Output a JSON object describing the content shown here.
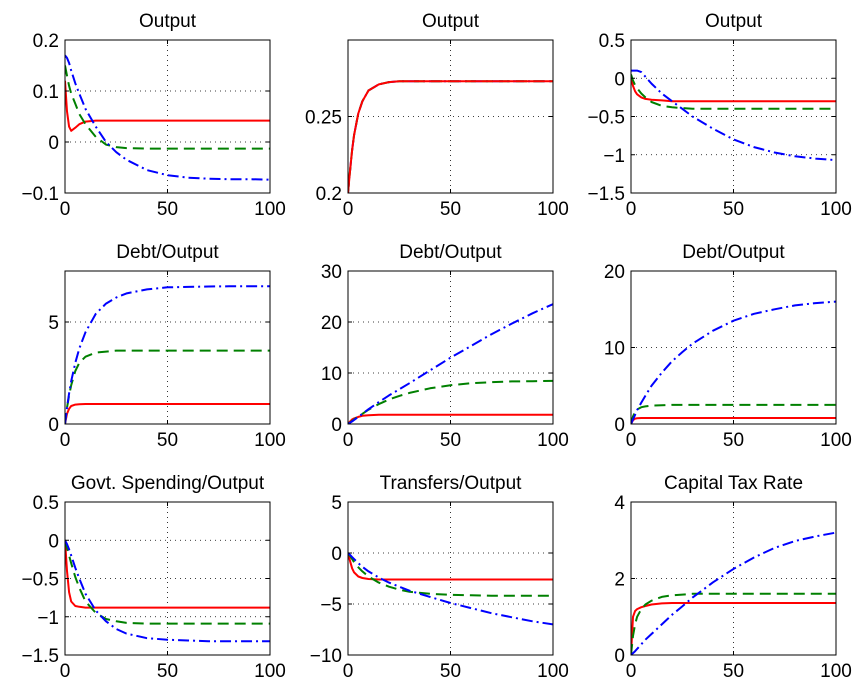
{
  "figure": {
    "colors": {
      "solid": "#ff0000",
      "dashed": "#008000",
      "dashdot": "#0000ff"
    },
    "line_styles": [
      "solid",
      "dashed",
      "dashdot"
    ]
  },
  "chart_data": [
    {
      "type": "line",
      "title": "Output",
      "xlim": [
        0,
        100
      ],
      "ylim": [
        -0.1,
        0.2
      ],
      "xticks": [
        0,
        50,
        100
      ],
      "yticks": [
        -0.1,
        0,
        0.1,
        0.2
      ],
      "xtick_labels": [
        "0",
        "50",
        "100"
      ],
      "ytick_labels": [
        "−0.1",
        "0",
        "0.1",
        "0.2"
      ],
      "grid": "dotted",
      "x": [
        0,
        1,
        2,
        3,
        5,
        7,
        10,
        15,
        20,
        25,
        30,
        40,
        50,
        60,
        70,
        80,
        90,
        100
      ],
      "series": [
        {
          "style": "solid",
          "color": "#ff0000",
          "values": [
            0.12,
            0.06,
            0.03,
            0.022,
            0.028,
            0.035,
            0.04,
            0.042,
            0.042,
            0.042,
            0.042,
            0.042,
            0.042,
            0.042,
            0.042,
            0.042,
            0.042,
            0.042
          ]
        },
        {
          "style": "dashed",
          "color": "#008000",
          "values": [
            0.15,
            0.13,
            0.11,
            0.095,
            0.075,
            0.055,
            0.035,
            0.01,
            -0.005,
            -0.01,
            -0.012,
            -0.013,
            -0.013,
            -0.013,
            -0.013,
            -0.013,
            -0.013,
            -0.013
          ]
        },
        {
          "style": "dashdot",
          "color": "#0000ff",
          "values": [
            0.17,
            0.165,
            0.155,
            0.14,
            0.115,
            0.095,
            0.065,
            0.03,
            0.0,
            -0.02,
            -0.035,
            -0.055,
            -0.065,
            -0.07,
            -0.072,
            -0.073,
            -0.073,
            -0.074
          ]
        }
      ]
    },
    {
      "type": "line",
      "title": "Output",
      "xlim": [
        0,
        100
      ],
      "ylim": [
        0.2,
        0.3
      ],
      "xticks": [
        0,
        50,
        100
      ],
      "yticks": [
        0.2,
        0.25
      ],
      "xtick_labels": [
        "0",
        "50",
        "100"
      ],
      "ytick_labels": [
        "0.2",
        "0.25"
      ],
      "grid": "dotted",
      "x": [
        0,
        1,
        2,
        3,
        5,
        7,
        10,
        15,
        20,
        25,
        30,
        40,
        50,
        60,
        70,
        80,
        90,
        100
      ],
      "series": [
        {
          "style": "dashdot",
          "color": "#0000ff",
          "values": [
            0.2,
            0.215,
            0.228,
            0.238,
            0.252,
            0.26,
            0.267,
            0.271,
            0.2725,
            0.273,
            0.273,
            0.273,
            0.273,
            0.273,
            0.273,
            0.273,
            0.273,
            0.273
          ]
        },
        {
          "style": "dashed",
          "color": "#008000",
          "values": [
            0.2,
            0.215,
            0.228,
            0.238,
            0.252,
            0.26,
            0.267,
            0.271,
            0.2725,
            0.273,
            0.273,
            0.273,
            0.273,
            0.273,
            0.273,
            0.273,
            0.273,
            0.273
          ]
        },
        {
          "style": "solid",
          "color": "#ff0000",
          "values": [
            0.2,
            0.215,
            0.228,
            0.238,
            0.252,
            0.26,
            0.267,
            0.271,
            0.2725,
            0.273,
            0.273,
            0.273,
            0.273,
            0.273,
            0.273,
            0.273,
            0.273,
            0.273
          ]
        }
      ]
    },
    {
      "type": "line",
      "title": "Output",
      "xlim": [
        0,
        100
      ],
      "ylim": [
        -1.5,
        0.5
      ],
      "xticks": [
        0,
        50,
        100
      ],
      "yticks": [
        -1.5,
        -1,
        -0.5,
        0,
        0.5
      ],
      "xtick_labels": [
        "0",
        "50",
        "100"
      ],
      "ytick_labels": [
        "−1.5",
        "−1",
        "−0.5",
        "0",
        "0.5"
      ],
      "grid": "dotted",
      "x": [
        0,
        1,
        2,
        3,
        5,
        7,
        10,
        15,
        20,
        25,
        30,
        40,
        50,
        60,
        70,
        80,
        90,
        100
      ],
      "series": [
        {
          "style": "solid",
          "color": "#ff0000",
          "values": [
            0.0,
            -0.1,
            -0.17,
            -0.21,
            -0.25,
            -0.27,
            -0.28,
            -0.29,
            -0.3,
            -0.3,
            -0.3,
            -0.3,
            -0.3,
            -0.3,
            -0.3,
            -0.3,
            -0.3,
            -0.3
          ]
        },
        {
          "style": "dashed",
          "color": "#008000",
          "values": [
            0.05,
            -0.03,
            -0.09,
            -0.13,
            -0.2,
            -0.25,
            -0.31,
            -0.36,
            -0.38,
            -0.39,
            -0.4,
            -0.4,
            -0.4,
            -0.4,
            -0.4,
            -0.4,
            -0.4,
            -0.4
          ]
        },
        {
          "style": "dashdot",
          "color": "#0000ff",
          "values": [
            0.1,
            0.1,
            0.1,
            0.1,
            0.08,
            0.02,
            -0.07,
            -0.2,
            -0.3,
            -0.4,
            -0.5,
            -0.66,
            -0.8,
            -0.9,
            -0.97,
            -1.02,
            -1.05,
            -1.07
          ]
        }
      ]
    },
    {
      "type": "line",
      "title": "Debt/Output",
      "xlim": [
        0,
        100
      ],
      "ylim": [
        0,
        7.5
      ],
      "xticks": [
        0,
        50,
        100
      ],
      "yticks": [
        0,
        5
      ],
      "xtick_labels": [
        "0",
        "50",
        "100"
      ],
      "ytick_labels": [
        "0",
        "5"
      ],
      "grid": "dotted",
      "x": [
        0,
        1,
        2,
        3,
        5,
        7,
        10,
        15,
        20,
        25,
        30,
        40,
        50,
        60,
        70,
        80,
        90,
        100
      ],
      "series": [
        {
          "style": "solid",
          "color": "#ff0000",
          "values": [
            0.0,
            0.5,
            0.75,
            0.88,
            0.95,
            0.97,
            0.98,
            0.98,
            0.98,
            0.98,
            0.98,
            0.98,
            0.98,
            0.98,
            0.98,
            0.98,
            0.98,
            0.98
          ]
        },
        {
          "style": "dashed",
          "color": "#008000",
          "values": [
            0.0,
            0.8,
            1.4,
            1.9,
            2.6,
            3.0,
            3.3,
            3.5,
            3.55,
            3.6,
            3.6,
            3.6,
            3.6,
            3.6,
            3.6,
            3.6,
            3.6,
            3.6
          ]
        },
        {
          "style": "dashdot",
          "color": "#0000ff",
          "values": [
            0.0,
            0.8,
            1.5,
            2.1,
            3.0,
            3.7,
            4.5,
            5.4,
            5.9,
            6.2,
            6.4,
            6.6,
            6.7,
            6.72,
            6.74,
            6.75,
            6.75,
            6.75
          ]
        }
      ]
    },
    {
      "type": "line",
      "title": "Debt/Output",
      "xlim": [
        0,
        100
      ],
      "ylim": [
        0,
        30
      ],
      "xticks": [
        0,
        50,
        100
      ],
      "yticks": [
        0,
        10,
        20,
        30
      ],
      "xtick_labels": [
        "0",
        "50",
        "100"
      ],
      "ytick_labels": [
        "0",
        "10",
        "20",
        "30"
      ],
      "grid": "dotted",
      "x": [
        0,
        1,
        2,
        3,
        5,
        7,
        10,
        15,
        20,
        25,
        30,
        40,
        50,
        60,
        70,
        80,
        90,
        100
      ],
      "series": [
        {
          "style": "solid",
          "color": "#ff0000",
          "values": [
            0.0,
            0.5,
            0.9,
            1.1,
            1.4,
            1.6,
            1.7,
            1.8,
            1.8,
            1.8,
            1.8,
            1.8,
            1.8,
            1.8,
            1.8,
            1.8,
            1.8,
            1.8
          ]
        },
        {
          "style": "dashed",
          "color": "#008000",
          "values": [
            0.0,
            0.3,
            0.6,
            0.9,
            1.5,
            2.0,
            2.8,
            3.9,
            4.8,
            5.5,
            6.1,
            7.0,
            7.6,
            8.0,
            8.2,
            8.35,
            8.4,
            8.45
          ]
        },
        {
          "style": "dashdot",
          "color": "#0000ff",
          "values": [
            0.0,
            0.25,
            0.5,
            0.8,
            1.4,
            2.0,
            2.9,
            4.3,
            5.6,
            6.8,
            8.0,
            10.5,
            13.0,
            15.3,
            17.6,
            19.7,
            21.7,
            23.5
          ]
        }
      ]
    },
    {
      "type": "line",
      "title": "Debt/Output",
      "xlim": [
        0,
        100
      ],
      "ylim": [
        0,
        20
      ],
      "xticks": [
        0,
        50,
        100
      ],
      "yticks": [
        0,
        10,
        20
      ],
      "xtick_labels": [
        "0",
        "50",
        "100"
      ],
      "ytick_labels": [
        "0",
        "10",
        "20"
      ],
      "grid": "dotted",
      "x": [
        0,
        1,
        2,
        3,
        5,
        7,
        10,
        15,
        20,
        25,
        30,
        40,
        50,
        60,
        70,
        80,
        90,
        100
      ],
      "series": [
        {
          "style": "solid",
          "color": "#ff0000",
          "values": [
            0.0,
            0.5,
            0.7,
            0.75,
            0.78,
            0.78,
            0.78,
            0.78,
            0.78,
            0.78,
            0.78,
            0.78,
            0.78,
            0.78,
            0.78,
            0.78,
            0.78,
            0.78
          ]
        },
        {
          "style": "dashed",
          "color": "#008000",
          "values": [
            0.0,
            1.0,
            1.6,
            1.9,
            2.2,
            2.3,
            2.4,
            2.45,
            2.5,
            2.5,
            2.5,
            2.5,
            2.5,
            2.5,
            2.5,
            2.5,
            2.5,
            2.5
          ]
        },
        {
          "style": "dashdot",
          "color": "#0000ff",
          "values": [
            0.0,
            0.6,
            1.2,
            1.8,
            2.8,
            3.7,
            5.0,
            6.7,
            8.2,
            9.4,
            10.5,
            12.2,
            13.5,
            14.4,
            15.0,
            15.5,
            15.8,
            16.0
          ]
        }
      ]
    },
    {
      "type": "line",
      "title": "Govt. Spending/Output",
      "xlim": [
        0,
        100
      ],
      "ylim": [
        -1.5,
        0.5
      ],
      "xticks": [
        0,
        50,
        100
      ],
      "yticks": [
        -1.5,
        -1,
        -0.5,
        0,
        0.5
      ],
      "xtick_labels": [
        "0",
        "50",
        "100"
      ],
      "ytick_labels": [
        "−1.5",
        "−1",
        "−0.5",
        "0",
        "0.5"
      ],
      "grid": "dotted",
      "x": [
        0,
        1,
        2,
        3,
        5,
        7,
        10,
        15,
        20,
        25,
        30,
        40,
        50,
        60,
        70,
        80,
        90,
        100
      ],
      "series": [
        {
          "style": "solid",
          "color": "#ff0000",
          "values": [
            0.0,
            -0.4,
            -0.68,
            -0.8,
            -0.86,
            -0.87,
            -0.88,
            -0.88,
            -0.88,
            -0.88,
            -0.88,
            -0.88,
            -0.88,
            -0.88,
            -0.88,
            -0.88,
            -0.88,
            -0.88
          ]
        },
        {
          "style": "dashed",
          "color": "#008000",
          "values": [
            0.0,
            -0.1,
            -0.2,
            -0.3,
            -0.48,
            -0.62,
            -0.8,
            -0.95,
            -1.03,
            -1.06,
            -1.08,
            -1.09,
            -1.09,
            -1.09,
            -1.09,
            -1.09,
            -1.09,
            -1.09
          ]
        },
        {
          "style": "dashdot",
          "color": "#0000ff",
          "values": [
            0.0,
            -0.05,
            -0.12,
            -0.2,
            -0.36,
            -0.5,
            -0.7,
            -0.92,
            -1.06,
            -1.16,
            -1.22,
            -1.28,
            -1.3,
            -1.31,
            -1.32,
            -1.32,
            -1.32,
            -1.32
          ]
        }
      ]
    },
    {
      "type": "line",
      "title": "Transfers/Output",
      "xlim": [
        0,
        100
      ],
      "ylim": [
        -10,
        5
      ],
      "xticks": [
        0,
        50,
        100
      ],
      "yticks": [
        -10,
        -5,
        0,
        5
      ],
      "xtick_labels": [
        "0",
        "50",
        "100"
      ],
      "ytick_labels": [
        "−10",
        "−5",
        "0",
        "5"
      ],
      "grid": "dotted",
      "x": [
        0,
        1,
        2,
        3,
        5,
        7,
        10,
        15,
        20,
        25,
        30,
        40,
        50,
        60,
        70,
        80,
        90,
        100
      ],
      "series": [
        {
          "style": "solid",
          "color": "#ff0000",
          "values": [
            0.0,
            -0.8,
            -1.5,
            -1.9,
            -2.3,
            -2.45,
            -2.55,
            -2.6,
            -2.6,
            -2.6,
            -2.6,
            -2.6,
            -2.6,
            -2.6,
            -2.6,
            -2.6,
            -2.6,
            -2.6
          ]
        },
        {
          "style": "dashed",
          "color": "#008000",
          "values": [
            0.0,
            -0.3,
            -0.6,
            -0.9,
            -1.4,
            -1.8,
            -2.3,
            -2.9,
            -3.3,
            -3.6,
            -3.8,
            -4.0,
            -4.1,
            -4.15,
            -4.2,
            -4.2,
            -4.2,
            -4.2
          ]
        },
        {
          "style": "dashdot",
          "color": "#0000ff",
          "values": [
            0.0,
            -0.2,
            -0.4,
            -0.6,
            -1.0,
            -1.35,
            -1.8,
            -2.4,
            -2.9,
            -3.3,
            -3.7,
            -4.3,
            -4.9,
            -5.4,
            -5.9,
            -6.3,
            -6.7,
            -7.0
          ]
        }
      ]
    },
    {
      "type": "line",
      "title": "Capital Tax Rate",
      "xlim": [
        0,
        100
      ],
      "ylim": [
        0,
        4
      ],
      "xticks": [
        0,
        50,
        100
      ],
      "yticks": [
        0,
        2,
        4
      ],
      "xtick_labels": [
        "0",
        "50",
        "100"
      ],
      "ytick_labels": [
        "0",
        "2",
        "4"
      ],
      "grid": "dotted",
      "x": [
        0,
        1,
        2,
        3,
        5,
        7,
        10,
        15,
        20,
        25,
        30,
        40,
        50,
        60,
        70,
        80,
        90,
        100
      ],
      "series": [
        {
          "style": "solid",
          "color": "#ff0000",
          "values": [
            0.0,
            1.0,
            1.15,
            1.2,
            1.25,
            1.28,
            1.32,
            1.35,
            1.36,
            1.36,
            1.36,
            1.36,
            1.36,
            1.36,
            1.36,
            1.36,
            1.36,
            1.36
          ]
        },
        {
          "style": "dashed",
          "color": "#008000",
          "values": [
            0.0,
            0.5,
            0.8,
            1.0,
            1.2,
            1.32,
            1.42,
            1.52,
            1.56,
            1.58,
            1.6,
            1.6,
            1.6,
            1.6,
            1.6,
            1.6,
            1.6,
            1.6
          ]
        },
        {
          "style": "dashdot",
          "color": "#0000ff",
          "values": [
            0.0,
            0.05,
            0.1,
            0.16,
            0.28,
            0.4,
            0.55,
            0.8,
            1.05,
            1.27,
            1.5,
            1.9,
            2.25,
            2.55,
            2.8,
            2.98,
            3.1,
            3.2
          ]
        }
      ]
    }
  ]
}
